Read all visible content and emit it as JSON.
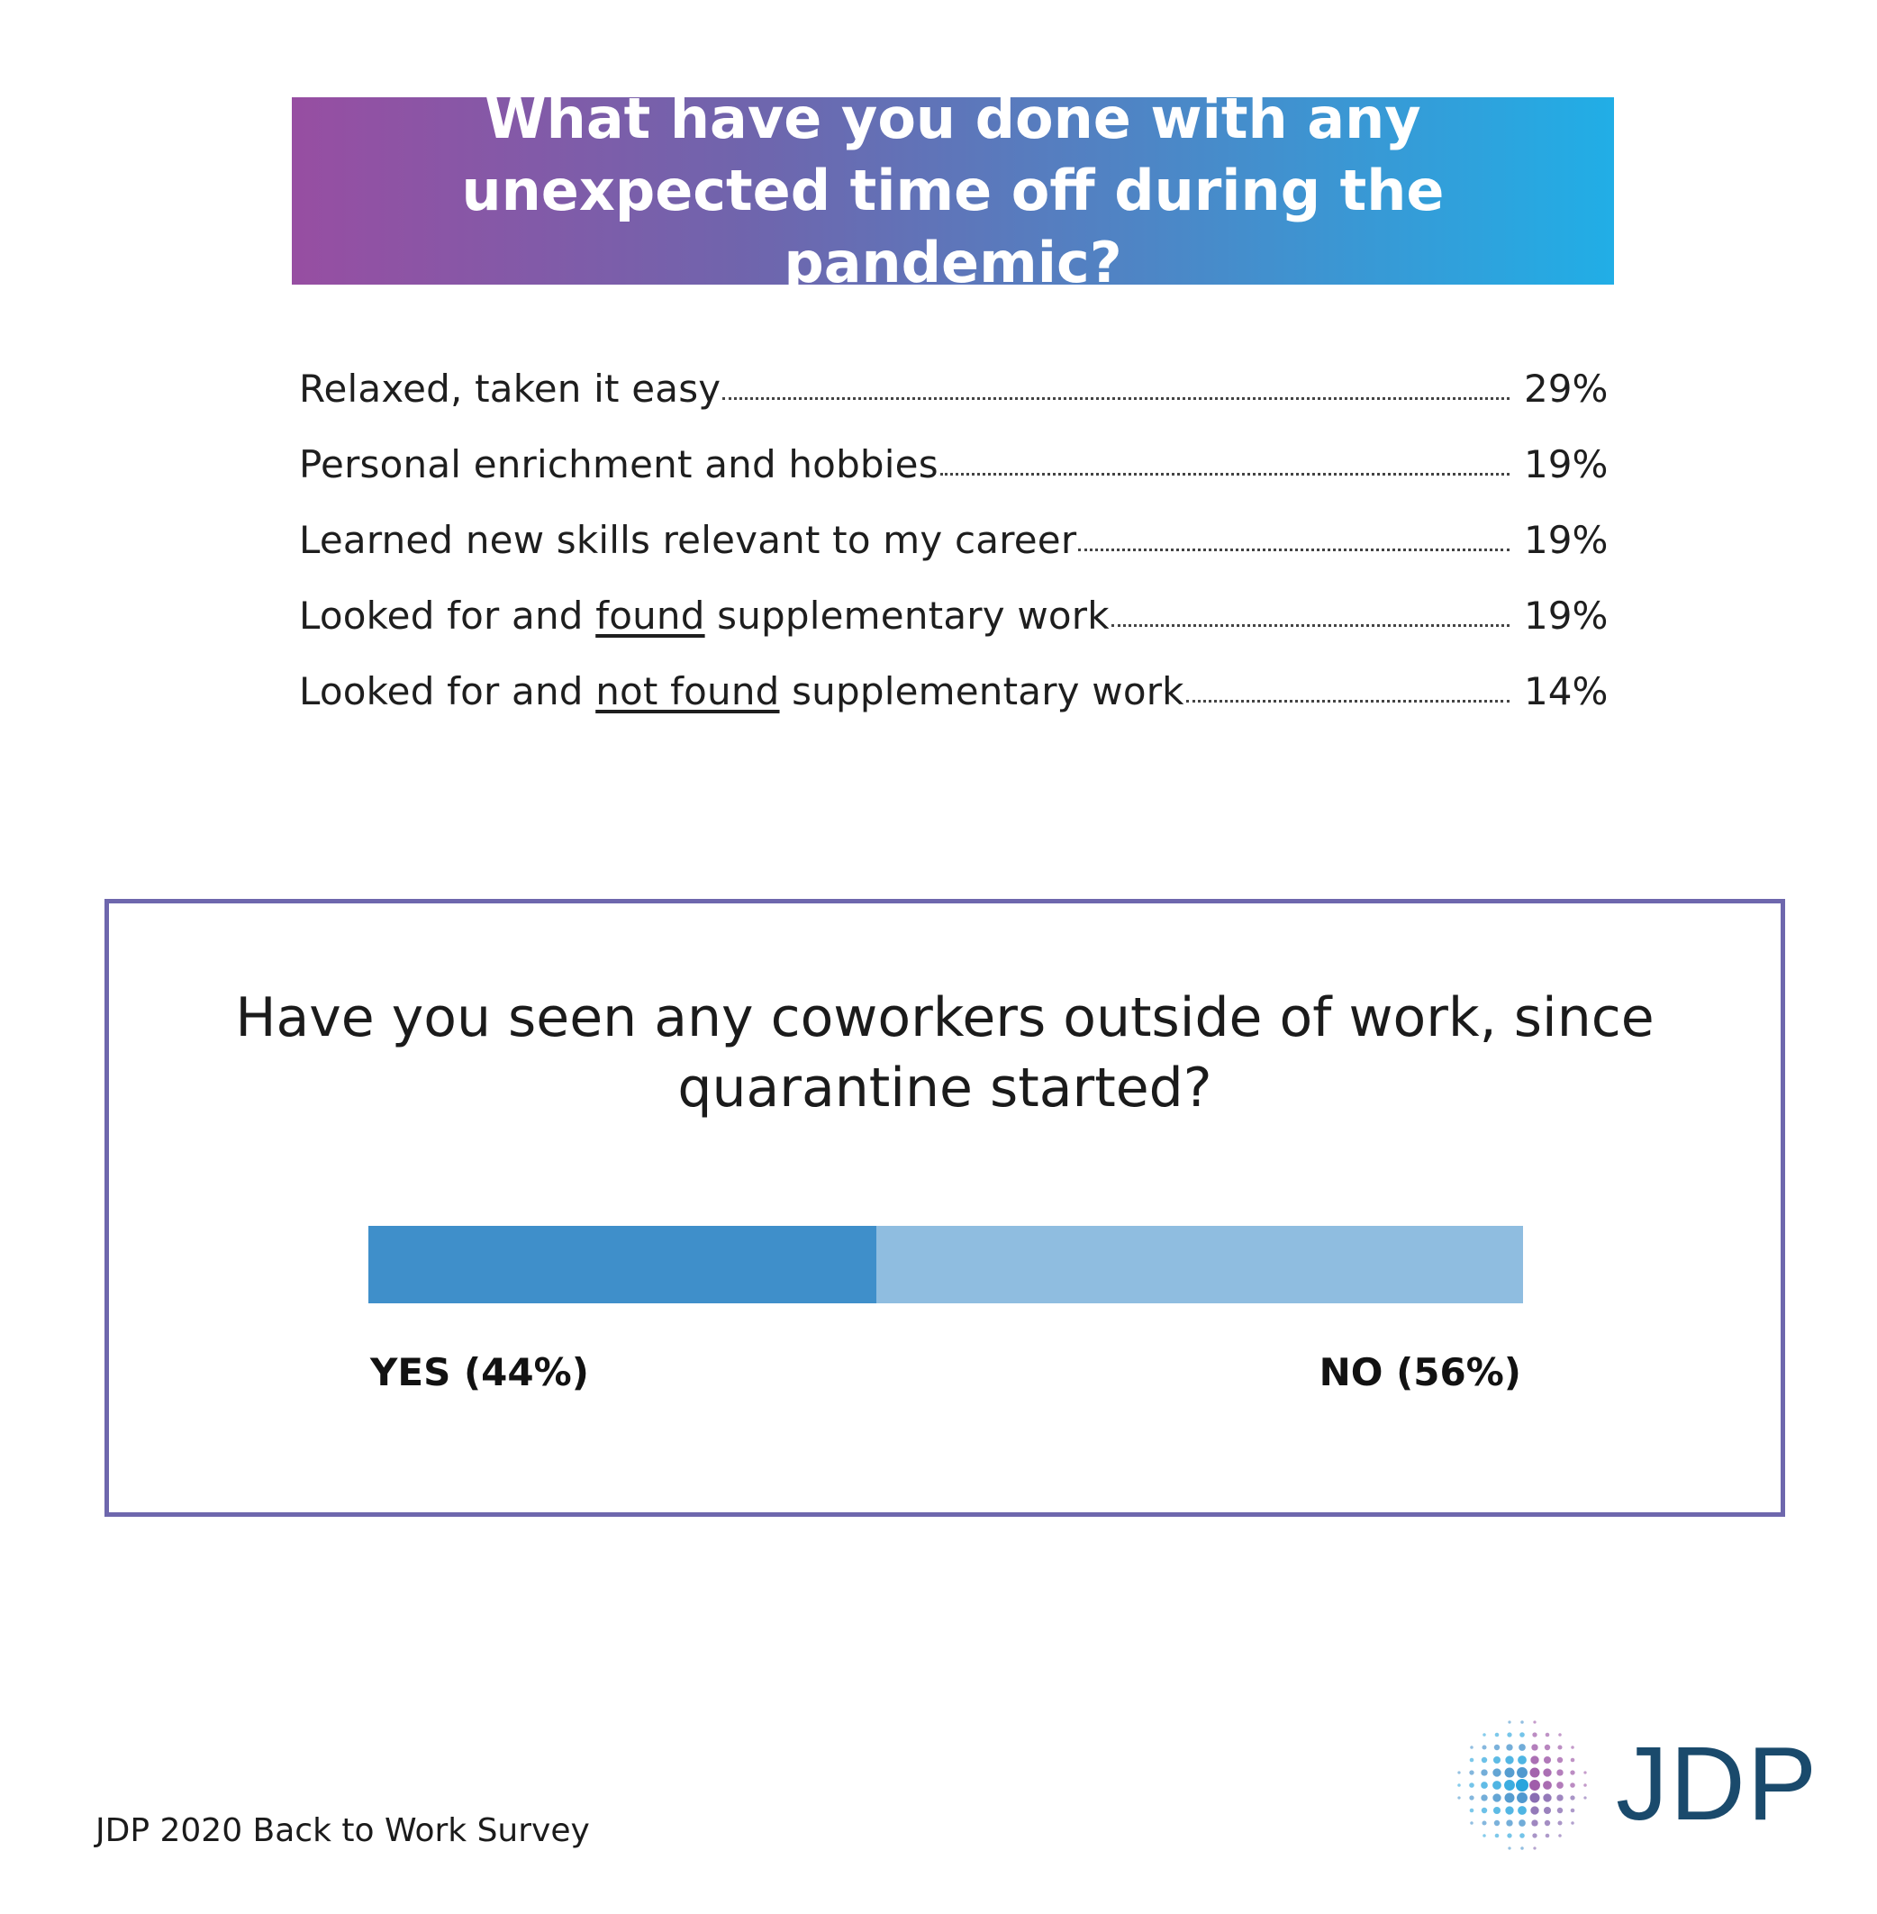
{
  "colors": {
    "banner_start": "#974ea2",
    "banner_end": "#21aee6",
    "box_border": "#6e67ad",
    "yes_bar": "#3f8fca",
    "no_bar": "#8fbde0",
    "logo_text": "#1a4a6c"
  },
  "chart_data": [
    {
      "type": "table",
      "title": "What have you done with any unexpected time off during the pandemic?",
      "rows": [
        {
          "pre": "Relaxed, taken it easy",
          "underline": "",
          "post": "",
          "value": "29%",
          "numeric": 29
        },
        {
          "pre": "Personal enrichment and hobbies",
          "underline": "",
          "post": "",
          "value": "19%",
          "numeric": 19
        },
        {
          "pre": "Learned new skills relevant to my career",
          "underline": "",
          "post": "",
          "value": "19%",
          "numeric": 19
        },
        {
          "pre": "Looked for and ",
          "underline": "found",
          "post": " supplementary work",
          "value": "19%",
          "numeric": 19
        },
        {
          "pre": "Looked for and ",
          "underline": "not found",
          "post": " supplementary work",
          "value": "14%",
          "numeric": 14
        }
      ]
    },
    {
      "type": "bar",
      "subtype": "stacked-horizontal",
      "title": "Have you seen any coworkers outside of work, since quarantine started?",
      "categories": [
        "YES",
        "NO"
      ],
      "values": [
        44,
        56
      ],
      "labels": [
        "YES (44%)",
        "NO (56%)"
      ],
      "xlim": [
        0,
        100
      ]
    }
  ],
  "footer": {
    "source": "JDP 2020 Back to Work Survey",
    "logo_text": "JDP",
    "logo_icon": "dot-cluster-icon"
  }
}
